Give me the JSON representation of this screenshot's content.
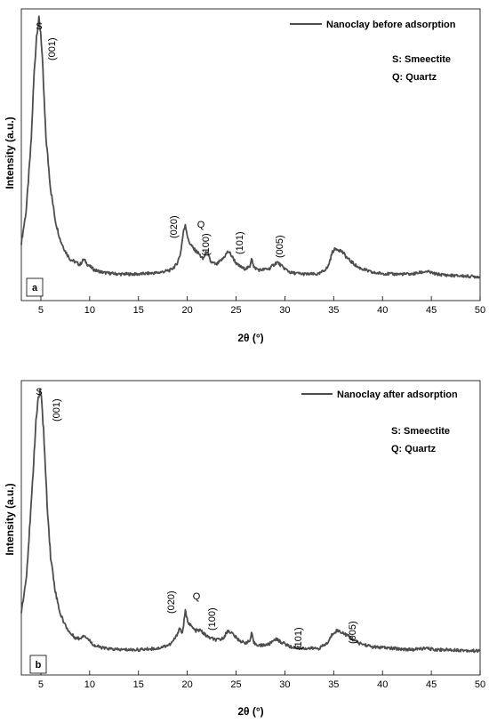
{
  "chart_data": [
    {
      "type": "line",
      "panel_label": "a",
      "xlabel": "2θ (°)",
      "ylabel": "Intensity (a.u.)",
      "xlim": [
        3,
        50
      ],
      "ylim": [
        0,
        100
      ],
      "xticks": [
        5,
        10,
        15,
        20,
        25,
        30,
        35,
        40,
        45,
        50
      ],
      "legend": "top-right",
      "series": [
        {
          "name": "Nanoclay before adsorption",
          "color": "#4d4d4d",
          "x": [
            3.0,
            3.5,
            4.0,
            4.3,
            4.6,
            4.8,
            5.0,
            5.2,
            5.5,
            6.0,
            6.5,
            7.0,
            7.5,
            8.0,
            8.5,
            9.0,
            9.4,
            9.8,
            10.5,
            11.5,
            13.0,
            15.0,
            17.0,
            18.3,
            18.9,
            19.3,
            19.6,
            19.8,
            20.1,
            20.6,
            21.2,
            21.6,
            22.0,
            22.4,
            23.0,
            23.6,
            24.2,
            24.6,
            25.1,
            25.8,
            26.4,
            26.6,
            26.8,
            27.4,
            28.4,
            29.2,
            29.8,
            30.6,
            32.0,
            33.5,
            34.4,
            34.9,
            35.3,
            35.8,
            36.5,
            37.5,
            39.0,
            41.0,
            43.0,
            44.5,
            45.5,
            47.0,
            50.0
          ],
          "values": [
            18,
            30,
            55,
            80,
            97,
            100,
            96,
            82,
            58,
            38,
            26,
            19,
            15,
            12,
            11,
            10,
            12,
            10,
            8,
            7,
            6.5,
            6.5,
            7,
            8,
            10,
            14,
            22,
            25,
            19,
            16,
            14,
            12,
            15,
            11,
            10,
            12,
            15,
            13,
            10,
            8.5,
            9,
            13,
            9,
            8,
            8.5,
            11,
            9,
            7,
            6.5,
            6.5,
            9,
            15,
            16,
            15,
            12,
            9,
            7,
            6.5,
            6.5,
            7.5,
            6.5,
            6,
            5.5
          ]
        }
      ],
      "annotations": [
        "S",
        "(001)",
        "(020)",
        "Q",
        "(100)",
        "(101)",
        "(005)"
      ],
      "key": [
        "S: Smeectite",
        "Q: Quartz"
      ]
    },
    {
      "type": "line",
      "panel_label": "b",
      "xlabel": "2θ (°)",
      "ylabel": "Intensity (a.u.)",
      "xlim": [
        3,
        50
      ],
      "ylim": [
        0,
        100
      ],
      "xticks": [
        5,
        10,
        15,
        20,
        25,
        30,
        35,
        40,
        45,
        50
      ],
      "legend": "top-right",
      "series": [
        {
          "name": "Nanoclay after adsorption",
          "color": "#4d4d4d",
          "x": [
            3.0,
            3.5,
            4.0,
            4.4,
            4.7,
            4.9,
            5.1,
            5.3,
            5.6,
            6.0,
            6.5,
            7.0,
            7.5,
            8.0,
            8.5,
            9.0,
            9.4,
            9.8,
            10.5,
            11.5,
            13.0,
            15.0,
            17.0,
            18.3,
            18.9,
            19.2,
            19.5,
            19.8,
            20.0,
            20.3,
            20.8,
            21.4,
            21.8,
            22.2,
            23.0,
            23.6,
            24.2,
            24.6,
            25.1,
            25.8,
            26.4,
            26.6,
            26.8,
            27.4,
            28.4,
            29.0,
            29.8,
            30.6,
            32.0,
            33.5,
            34.4,
            34.9,
            35.3,
            35.8,
            36.5,
            37.5,
            39.0,
            41.0,
            43.0,
            44.3,
            45.5,
            47.0,
            50.0
          ],
          "values": [
            20,
            32,
            58,
            84,
            98,
            100,
            97,
            85,
            62,
            40,
            27,
            19,
            15,
            12,
            10.5,
            10,
            11.5,
            10,
            7.5,
            6.5,
            6,
            6,
            6.5,
            8,
            11,
            14,
            12,
            20,
            17,
            15,
            13,
            13,
            11.5,
            10.5,
            9.5,
            10,
            13,
            12,
            10,
            8.5,
            9,
            12,
            8.5,
            7.5,
            8,
            10,
            8.5,
            7,
            6.5,
            6.5,
            8.5,
            12,
            13,
            12.5,
            11,
            8.5,
            7,
            6.5,
            6,
            6.5,
            6,
            6,
            5.5
          ]
        }
      ],
      "annotations": [
        "S",
        "(001)",
        "(020)",
        "Q",
        "(100)",
        "(101)",
        "(005)"
      ],
      "key": [
        "S: Smeectite",
        "Q: Quartz"
      ]
    }
  ]
}
